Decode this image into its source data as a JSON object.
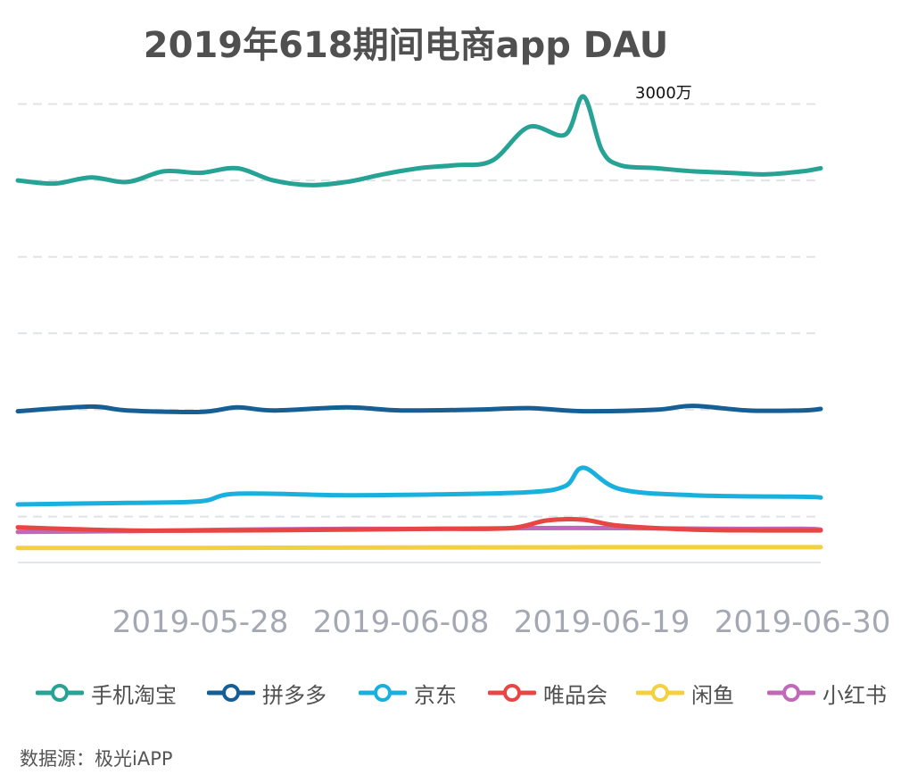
{
  "source": "数据源：极光iAPP",
  "chart_data": {
    "type": "line",
    "title": "2019年618期间电商app DAU",
    "xlabel": "",
    "ylabel": "",
    "x_start": "2019-05-18",
    "x_end": "2019-07-01",
    "x_ticks": [
      "2019-05-28",
      "2019-06-08",
      "2019-06-19",
      "2019-06-30"
    ],
    "ylim": [
      0,
      3050
    ],
    "y_gridlines": [
      0,
      300,
      1000,
      1500,
      2000,
      2500,
      3000
    ],
    "annotation": "3000万",
    "grid": true,
    "legend_position": "bottom",
    "series": [
      {
        "name": "手机淘宝",
        "color": "#26a394",
        "x": [
          "2019-05-18",
          "2019-05-20",
          "2019-05-22",
          "2019-05-24",
          "2019-05-26",
          "2019-05-28",
          "2019-05-30",
          "2019-06-01",
          "2019-06-03",
          "2019-06-05",
          "2019-06-07",
          "2019-06-09",
          "2019-06-11",
          "2019-06-13",
          "2019-06-15",
          "2019-06-17",
          "2019-06-18",
          "2019-06-19",
          "2019-06-20",
          "2019-06-22",
          "2019-06-24",
          "2019-06-26",
          "2019-06-28",
          "2019-06-30",
          "2019-07-01"
        ],
        "values": [
          2500,
          2480,
          2520,
          2490,
          2560,
          2550,
          2580,
          2500,
          2470,
          2490,
          2540,
          2580,
          2600,
          2630,
          2850,
          2800,
          3050,
          2700,
          2600,
          2580,
          2560,
          2550,
          2540,
          2560,
          2580
        ]
      },
      {
        "name": "拼多多",
        "color": "#155f94",
        "x": [
          "2019-05-18",
          "2019-05-22",
          "2019-05-24",
          "2019-05-28",
          "2019-05-30",
          "2019-06-01",
          "2019-06-05",
          "2019-06-08",
          "2019-06-12",
          "2019-06-15",
          "2019-06-18",
          "2019-06-22",
          "2019-06-24",
          "2019-06-27",
          "2019-06-30",
          "2019-07-01"
        ],
        "values": [
          990,
          1020,
          995,
          985,
          1015,
          995,
          1015,
          995,
          1000,
          1010,
          990,
          1000,
          1025,
          995,
          995,
          1005
        ]
      },
      {
        "name": "京东",
        "color": "#1ab0dd",
        "x": [
          "2019-05-18",
          "2019-05-24",
          "2019-05-28",
          "2019-05-30",
          "2019-06-05",
          "2019-06-10",
          "2019-06-15",
          "2019-06-17",
          "2019-06-18",
          "2019-06-20",
          "2019-06-24",
          "2019-06-30",
          "2019-07-01"
        ],
        "values": [
          380,
          390,
          400,
          450,
          440,
          445,
          460,
          500,
          620,
          480,
          440,
          430,
          425
        ]
      },
      {
        "name": "唯品会",
        "color": "#e84545",
        "x": [
          "2019-05-18",
          "2019-05-24",
          "2019-05-30",
          "2019-06-05",
          "2019-06-10",
          "2019-06-14",
          "2019-06-16",
          "2019-06-18",
          "2019-06-20",
          "2019-06-24",
          "2019-06-28",
          "2019-07-01"
        ],
        "values": [
          230,
          210,
          210,
          215,
          220,
          225,
          275,
          280,
          240,
          215,
          210,
          210
        ]
      },
      {
        "name": "闲鱼",
        "color": "#f4d03f",
        "x": [
          "2019-05-18",
          "2019-05-28",
          "2019-06-08",
          "2019-06-19",
          "2019-07-01"
        ],
        "values": [
          95,
          95,
          98,
          100,
          100
        ]
      },
      {
        "name": "小红书",
        "color": "#c168b8",
        "x": [
          "2019-05-18",
          "2019-05-24",
          "2019-05-30",
          "2019-06-05",
          "2019-06-10",
          "2019-06-15",
          "2019-06-20",
          "2019-06-25",
          "2019-06-30",
          "2019-07-01"
        ],
        "values": [
          200,
          205,
          215,
          220,
          220,
          225,
          225,
          220,
          220,
          215
        ]
      }
    ]
  }
}
